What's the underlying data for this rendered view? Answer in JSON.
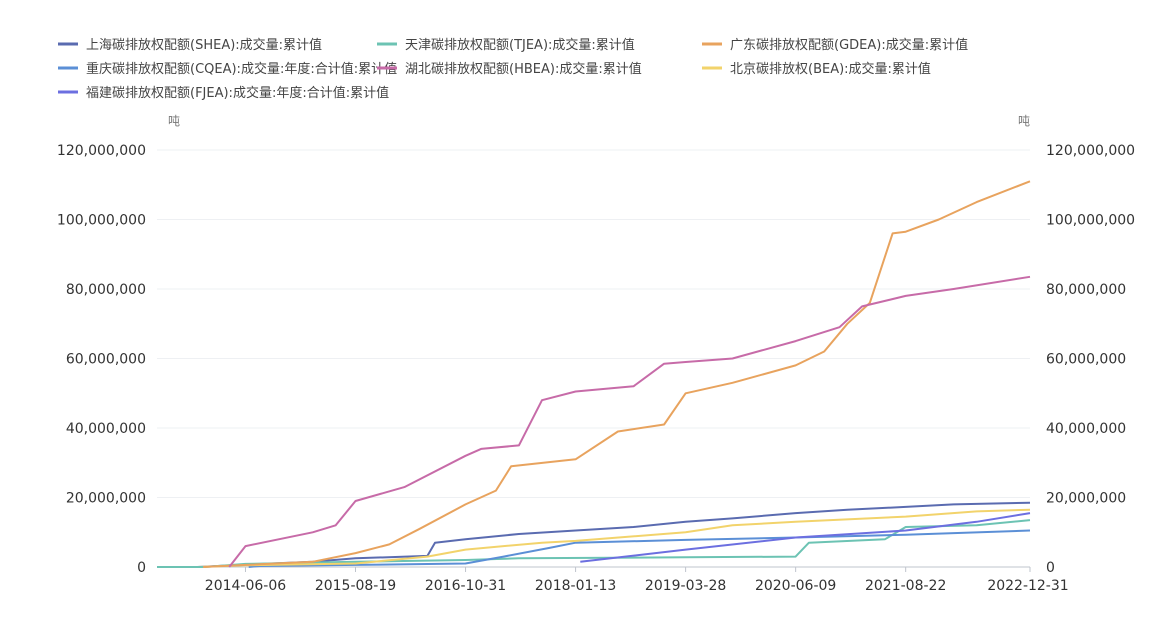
{
  "chart_data": {
    "type": "line",
    "y_unit_left": "吨",
    "y_unit_right": "吨",
    "ylim": [
      0,
      120000000
    ],
    "y_ticks": [
      0,
      20000000,
      40000000,
      60000000,
      80000000,
      100000000,
      120000000
    ],
    "y_tick_labels": [
      "0",
      "20,000,000",
      "40,000,000",
      "60,000,000",
      "80,000,000",
      "100,000,000",
      "120,000,000"
    ],
    "x_range": [
      "2013-06-18",
      "2022-12-31"
    ],
    "x_tick_labels": [
      "2014-06-06",
      "2015-08-19",
      "2016-10-31",
      "2018-01-13",
      "2019-03-28",
      "2020-06-09",
      "2021-08-22",
      "2022-12-31"
    ],
    "series": [
      {
        "name": "上海碳排放权配额(SHEA):成交量:累计值",
        "color": "#5a6bb0",
        "points": [
          [
            "2013-11-26",
            0
          ],
          [
            "2014-06-06",
            700000
          ],
          [
            "2015-03-01",
            1500000
          ],
          [
            "2015-08-19",
            2500000
          ],
          [
            "2016-06-01",
            3200000
          ],
          [
            "2016-07-01",
            7000000
          ],
          [
            "2016-10-31",
            8000000
          ],
          [
            "2017-06-01",
            9500000
          ],
          [
            "2018-01-13",
            10500000
          ],
          [
            "2018-09-01",
            11500000
          ],
          [
            "2019-03-28",
            13000000
          ],
          [
            "2019-10-01",
            14000000
          ],
          [
            "2020-06-09",
            15500000
          ],
          [
            "2021-01-01",
            16500000
          ],
          [
            "2021-08-22",
            17300000
          ],
          [
            "2022-03-01",
            18000000
          ],
          [
            "2022-12-31",
            18500000
          ]
        ]
      },
      {
        "name": "天津碳排放权配额(TJEA):成交量:累计值",
        "color": "#6cc3b3",
        "points": [
          [
            "2013-12-26",
            0
          ],
          [
            "2014-06-06",
            900000
          ],
          [
            "2015-08-19",
            1500000
          ],
          [
            "2016-10-31",
            2000000
          ],
          [
            "2017-06-01",
            2500000
          ],
          [
            "2019-03-28",
            2800000
          ],
          [
            "2020-06-09",
            3000000
          ],
          [
            "2020-08-01",
            7000000
          ],
          [
            "2021-06-01",
            8000000
          ],
          [
            "2021-08-22",
            11500000
          ],
          [
            "2022-06-01",
            12000000
          ],
          [
            "2022-12-31",
            13500000
          ]
        ]
      },
      {
        "name": "广东碳排放权配额(GDEA):成交量:累计值",
        "color": "#e8a35e",
        "points": [
          [
            "2013-12-19",
            0
          ],
          [
            "2014-06-06",
            600000
          ],
          [
            "2015-03-01",
            1500000
          ],
          [
            "2015-08-19",
            4000000
          ],
          [
            "2016-01-01",
            6500000
          ],
          [
            "2016-05-01",
            11000000
          ],
          [
            "2016-10-31",
            18000000
          ],
          [
            "2017-03-01",
            22000000
          ],
          [
            "2017-05-01",
            29000000
          ],
          [
            "2018-01-13",
            31000000
          ],
          [
            "2018-07-01",
            39000000
          ],
          [
            "2019-01-01",
            41000000
          ],
          [
            "2019-03-28",
            50000000
          ],
          [
            "2019-10-01",
            53000000
          ],
          [
            "2020-06-09",
            58000000
          ],
          [
            "2020-10-01",
            62000000
          ],
          [
            "2021-01-01",
            70000000
          ],
          [
            "2021-04-01",
            76000000
          ],
          [
            "2021-07-01",
            96000000
          ],
          [
            "2021-08-22",
            96500000
          ],
          [
            "2022-01-01",
            100000000
          ],
          [
            "2022-06-01",
            105000000
          ],
          [
            "2022-12-31",
            111000000
          ]
        ]
      },
      {
        "name": "重庆碳排放权配额(CQEA):成交量:年度:合计值:累计值",
        "color": "#5b8fd6",
        "points": [
          [
            "2014-06-19",
            0
          ],
          [
            "2014-08-01",
            300000
          ],
          [
            "2015-08-19",
            600000
          ],
          [
            "2016-10-31",
            1000000
          ],
          [
            "2017-04-01",
            3000000
          ],
          [
            "2017-10-01",
            5500000
          ],
          [
            "2018-01-13",
            7000000
          ],
          [
            "2019-03-28",
            7800000
          ],
          [
            "2020-06-09",
            8500000
          ],
          [
            "2021-08-22",
            9300000
          ],
          [
            "2022-12-31",
            10500000
          ]
        ]
      },
      {
        "name": "湖北碳排放权配额(HBEA):成交量:累计值",
        "color": "#c76ba8",
        "points": [
          [
            "2014-04-02",
            0
          ],
          [
            "2014-06-06",
            6000000
          ],
          [
            "2015-03-01",
            10000000
          ],
          [
            "2015-06-01",
            12000000
          ],
          [
            "2015-08-19",
            19000000
          ],
          [
            "2016-03-01",
            23000000
          ],
          [
            "2016-10-31",
            32000000
          ],
          [
            "2017-01-01",
            34000000
          ],
          [
            "2017-06-01",
            35000000
          ],
          [
            "2017-09-01",
            48000000
          ],
          [
            "2018-01-13",
            50500000
          ],
          [
            "2018-09-01",
            52000000
          ],
          [
            "2019-01-01",
            58500000
          ],
          [
            "2019-03-28",
            59000000
          ],
          [
            "2019-10-01",
            60000000
          ],
          [
            "2020-06-09",
            65000000
          ],
          [
            "2020-12-01",
            69000000
          ],
          [
            "2021-03-01",
            75000000
          ],
          [
            "2021-08-22",
            78000000
          ],
          [
            "2022-03-01",
            80000000
          ],
          [
            "2022-12-31",
            83500000
          ]
        ]
      },
      {
        "name": "北京碳排放权(BEA):成交量:累计值",
        "color": "#f2d36b",
        "points": [
          [
            "2013-11-28",
            0
          ],
          [
            "2014-06-06",
            500000
          ],
          [
            "2015-08-19",
            1000000
          ],
          [
            "2016-06-01",
            3000000
          ],
          [
            "2016-10-31",
            5000000
          ],
          [
            "2017-09-01",
            7000000
          ],
          [
            "2018-01-13",
            7500000
          ],
          [
            "2019-03-28",
            10000000
          ],
          [
            "2019-10-01",
            12000000
          ],
          [
            "2020-06-09",
            13000000
          ],
          [
            "2021-08-22",
            14500000
          ],
          [
            "2022-06-01",
            16000000
          ],
          [
            "2022-12-31",
            16500000
          ]
        ]
      },
      {
        "name": "福建碳排放权配额(FJEA):成交量:年度:合计值:累计值",
        "color": "#6c6fe0",
        "points": [
          [
            "2018-02-01",
            1500000
          ],
          [
            "2019-03-28",
            5000000
          ],
          [
            "2020-06-09",
            8500000
          ],
          [
            "2021-08-22",
            10500000
          ],
          [
            "2022-06-01",
            13000000
          ],
          [
            "2022-12-31",
            15500000
          ]
        ]
      }
    ]
  }
}
